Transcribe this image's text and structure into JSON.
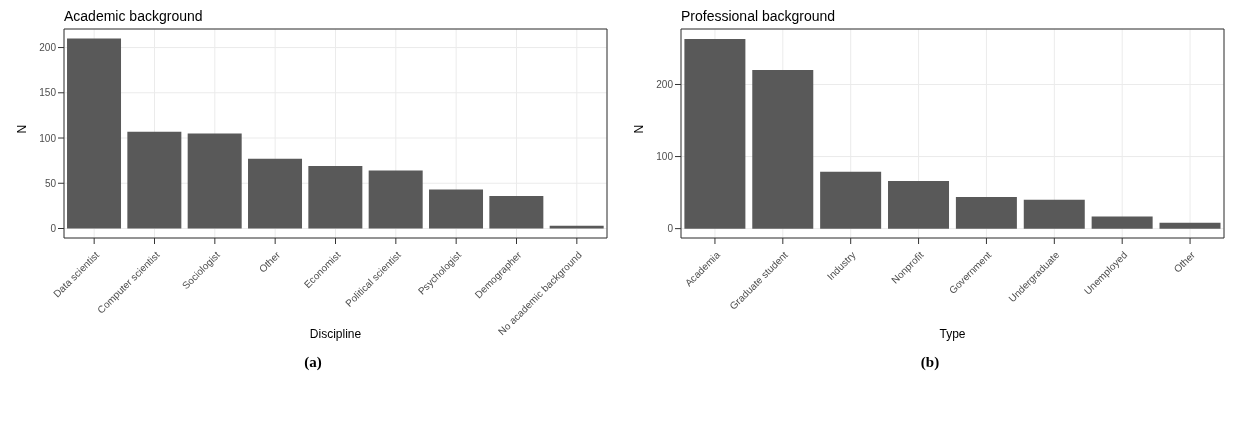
{
  "chart_data": [
    {
      "type": "bar",
      "title": "Academic background",
      "xlabel": "Discipline",
      "ylabel": "N",
      "categories": [
        "Data scientist",
        "Computer scientist",
        "Sociologist",
        "Other",
        "Economist",
        "Political scientist",
        "Psychologist",
        "Demographer",
        "No academic background"
      ],
      "values": [
        210,
        107,
        105,
        77,
        69,
        64,
        43,
        36,
        3
      ],
      "color": "#595959",
      "ylim": [
        -10.5,
        220.5
      ],
      "yticks": [
        0,
        50,
        100,
        150,
        200
      ],
      "grid": true,
      "annotations": [
        "(a)"
      ]
    },
    {
      "type": "bar",
      "title": "Professional background",
      "xlabel": "Type",
      "ylabel": "N",
      "categories": [
        "Academia",
        "Graduate student",
        "Industry",
        "Nonprofit",
        "Government",
        "Undergraduate",
        "Unemployed",
        "Other"
      ],
      "values": [
        263,
        220,
        79,
        66,
        44,
        40,
        17,
        8
      ],
      "color": "#595959",
      "ylim": [
        -13,
        277
      ],
      "yticks": [
        0,
        100,
        200
      ],
      "grid": true,
      "annotations": [
        "(b)"
      ]
    }
  ]
}
